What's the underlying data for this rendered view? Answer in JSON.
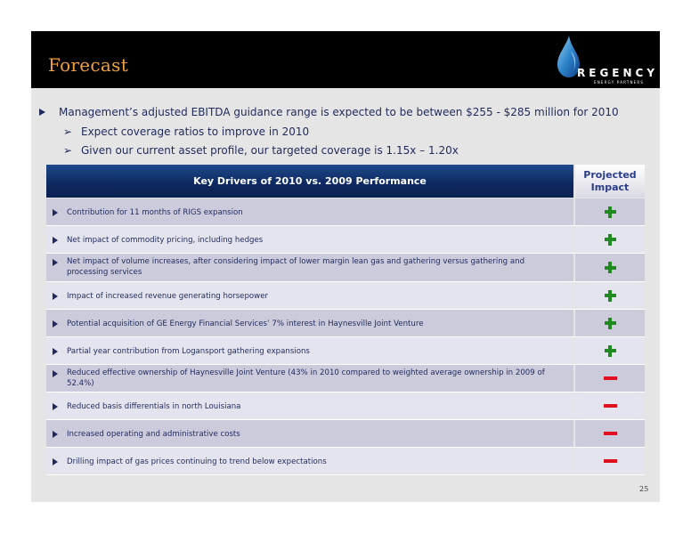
{
  "slide": {
    "title": "Forecast",
    "logo": {
      "brand": "REGENCY",
      "subtitle": "ENERGY PARTNERS",
      "icon": "flame-drop-icon"
    },
    "main_bullet": "Management’s adjusted EBITDA guidance range is expected to be between $255 - $285 million for 2010",
    "sub_bullets": [
      "Expect coverage ratios to improve in 2010",
      "Given our current asset profile, our targeted coverage is 1.15x – 1.20x"
    ],
    "table": {
      "header_drivers": "Key Drivers of 2010 vs. 2009 Performance",
      "header_impact_line1": "Projected",
      "header_impact_line2": "Impact",
      "rows": [
        {
          "text": "Contribution for 11 months of RIGS expansion",
          "impact": "positive"
        },
        {
          "text": "Net impact of commodity pricing, including hedges",
          "impact": "positive"
        },
        {
          "text": "Net impact of volume increases, after considering impact of lower margin lean gas and gathering versus gathering and processing services",
          "impact": "positive"
        },
        {
          "text": "Impact of increased revenue generating horsepower",
          "impact": "positive"
        },
        {
          "text": "Potential acquisition of GE Energy Financial Services’ 7% interest in Haynesville Joint Venture",
          "impact": "positive"
        },
        {
          "text": "Partial year contribution from Logansport gathering expansions",
          "impact": "positive"
        },
        {
          "text": "Reduced effective ownership of Haynesville Joint Venture (43% in 2010 compared to weighted average ownership in 2009 of 52.4%)",
          "impact": "negative"
        },
        {
          "text": "Reduced basis differentials in north Louisiana",
          "impact": "negative"
        },
        {
          "text": "Increased operating and administrative costs",
          "impact": "negative"
        },
        {
          "text": "Drilling impact of gas prices continuing to trend below expectations",
          "impact": "negative"
        }
      ]
    },
    "page_number": "25"
  },
  "colors": {
    "title": "#f0a040",
    "header_bg": "#000000",
    "text_navy": "#1f2a5c",
    "positive": "#1f8a1f",
    "negative": "#e0101e"
  }
}
